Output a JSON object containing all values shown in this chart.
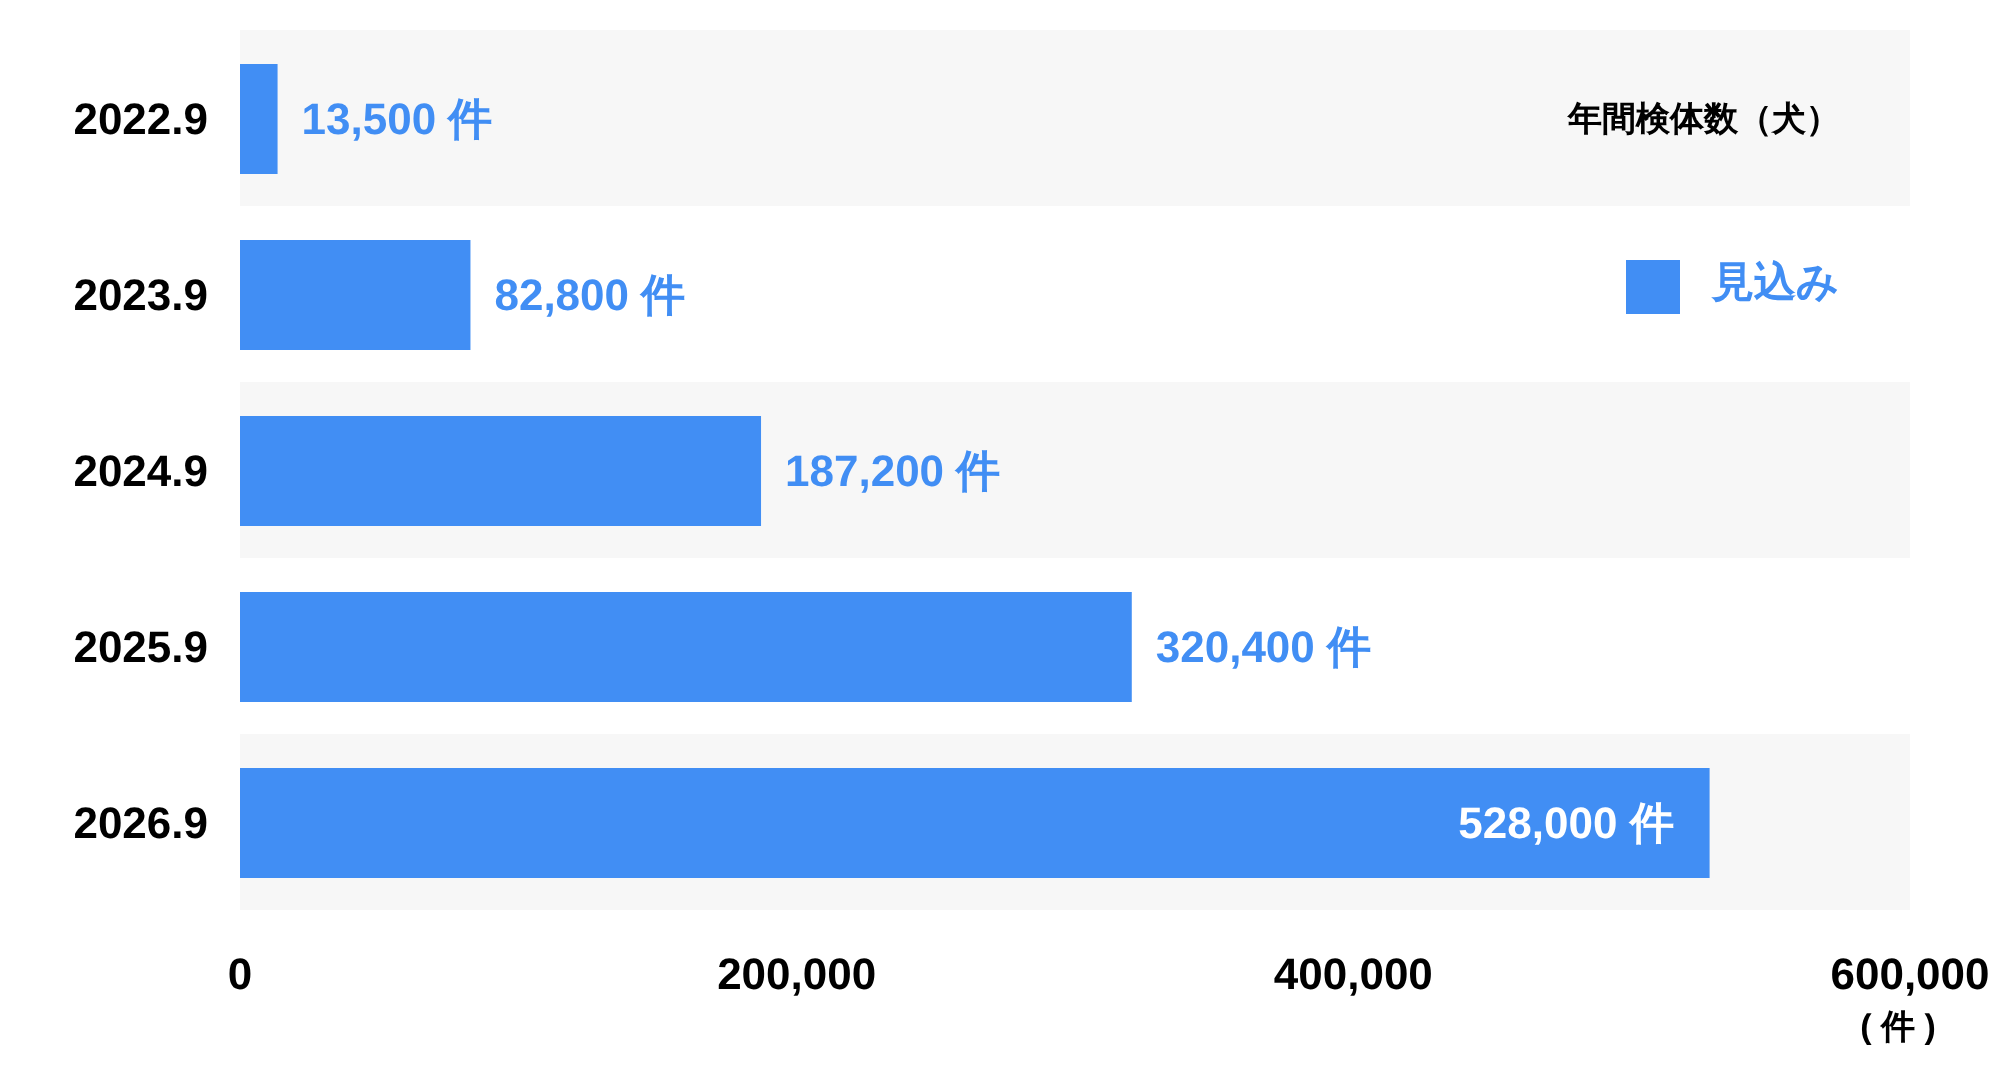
{
  "chart_data": {
    "type": "bar",
    "orientation": "horizontal",
    "categories": [
      "2022.9",
      "2023.9",
      "2024.9",
      "2025.9",
      "2026.9"
    ],
    "series": [
      {
        "name": "見込み",
        "color": "#418ef4",
        "values": [
          13500,
          82800,
          187200,
          320400,
          528000
        ],
        "value_labels": [
          "13,500 件",
          "82,800 件",
          "187,200 件",
          "320,400 件",
          "528,000 件"
        ]
      }
    ],
    "xlim": [
      0,
      600000
    ],
    "xticks": [
      0,
      {
        "value": 200000,
        "label": "200,000"
      },
      {
        "value": 400000,
        "label": "400,000"
      },
      {
        "value": 600000,
        "label": "600,000"
      }
    ],
    "xlabel": "( 件 )",
    "legend_title": "年間検体数（犬）",
    "legend": "top right"
  }
}
